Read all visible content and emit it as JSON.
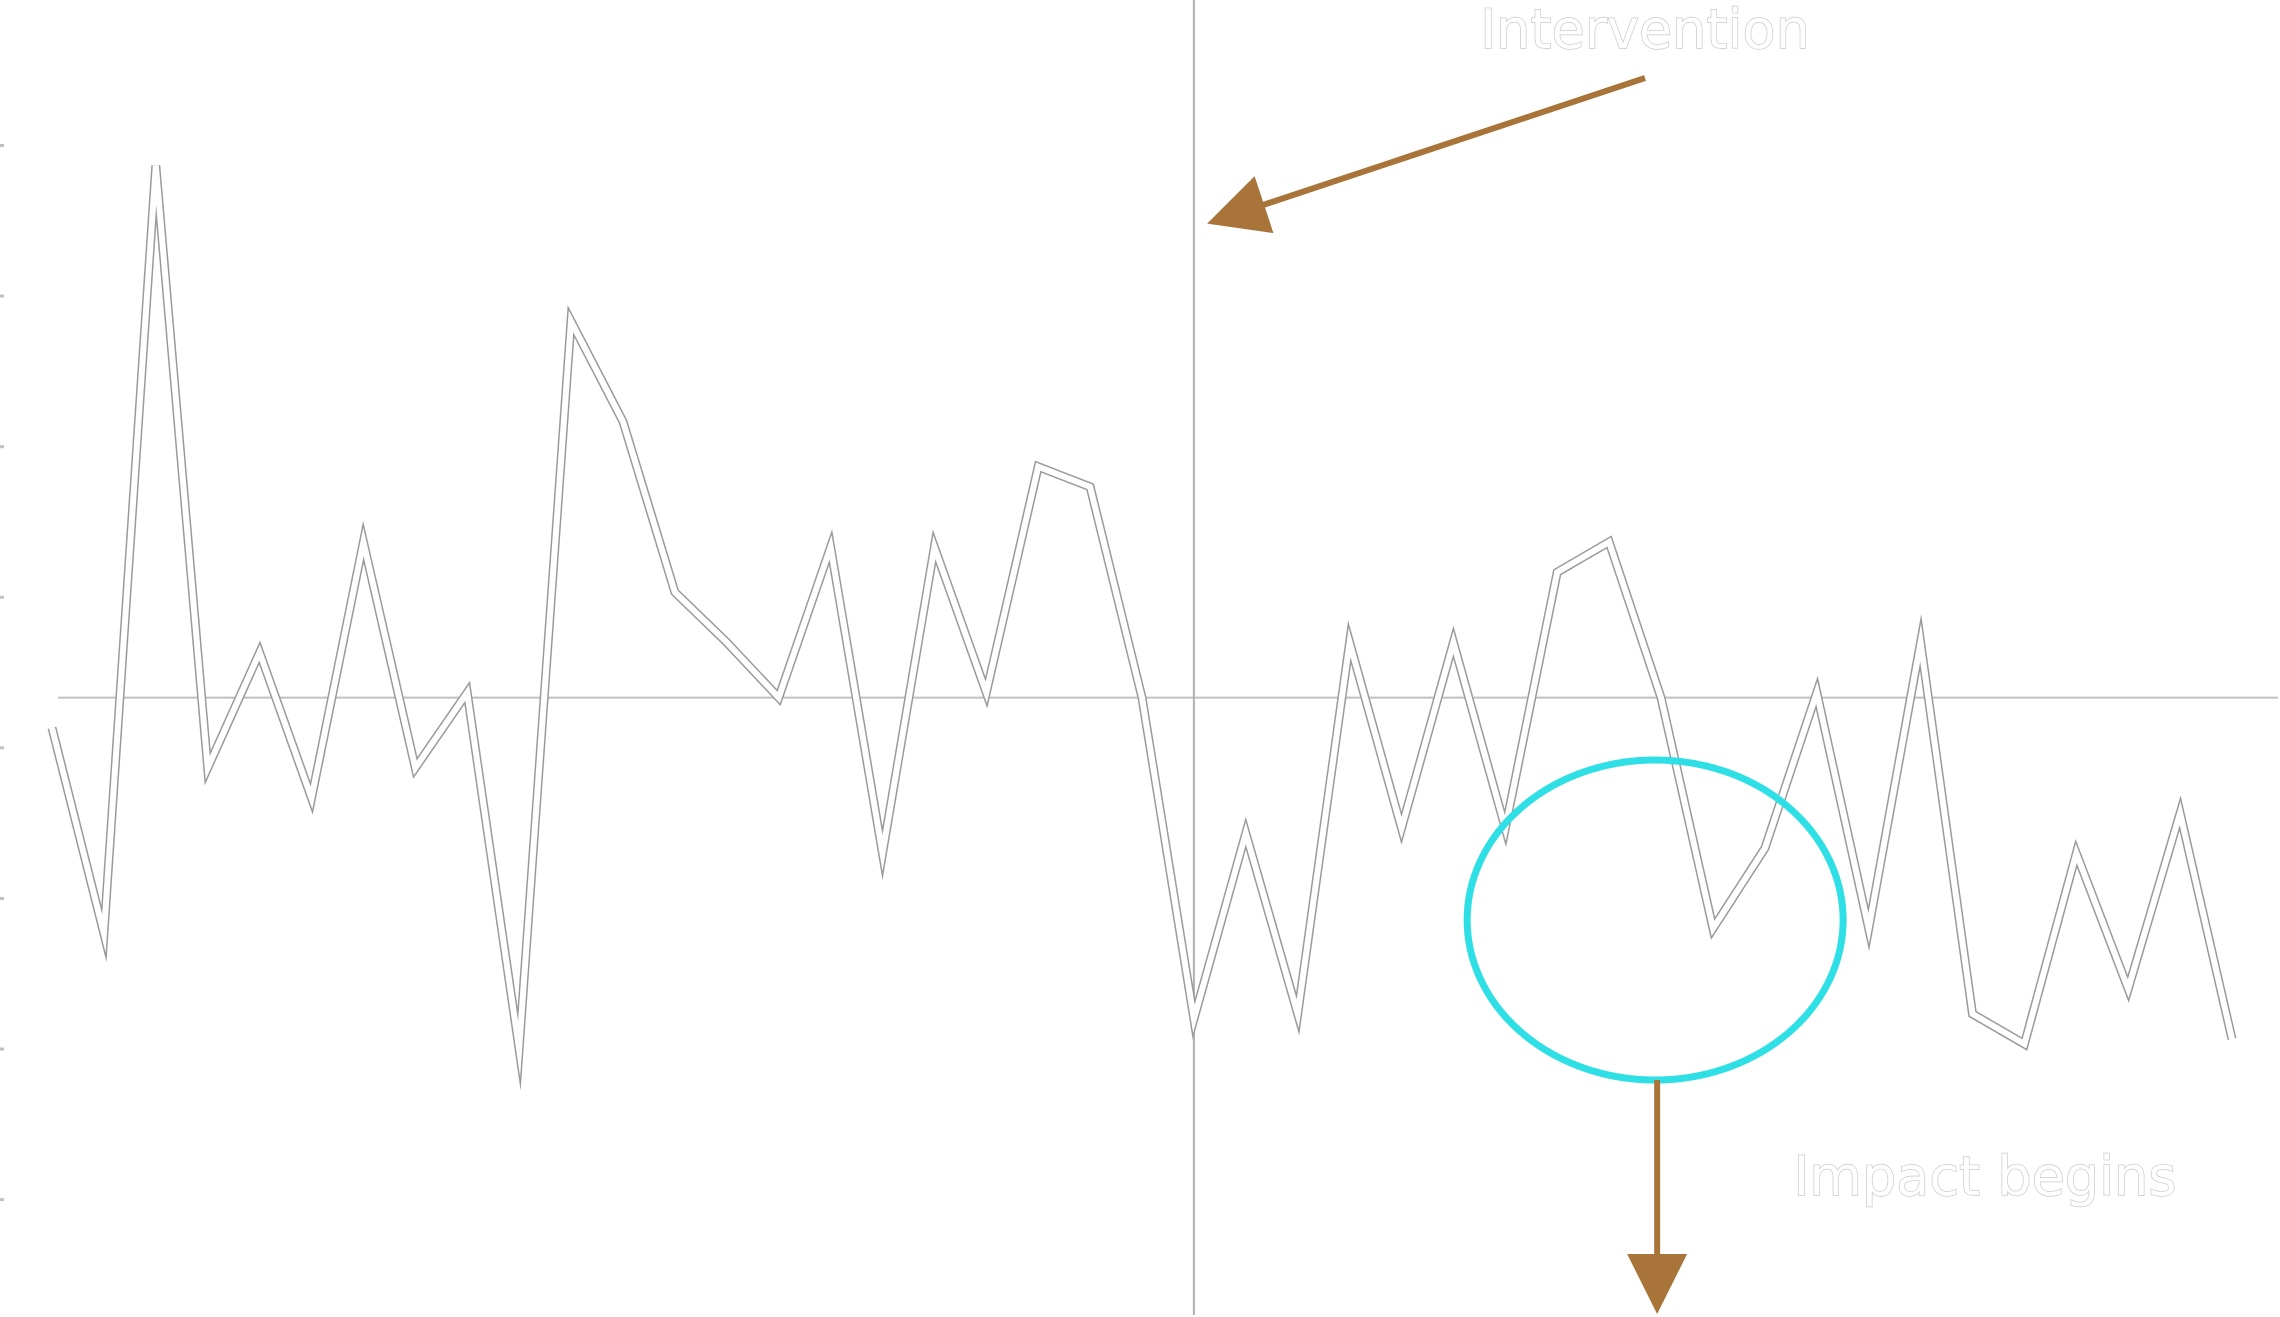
{
  "chart_data": {
    "type": "line",
    "title": "",
    "xlabel": "",
    "ylabel": "",
    "grid": false,
    "legend": "none",
    "x": [
      0,
      1,
      2,
      3,
      4,
      5,
      6,
      7,
      8,
      9,
      10,
      11,
      12,
      13,
      14,
      15,
      16,
      17,
      18,
      19,
      20,
      21,
      22,
      23,
      24,
      25,
      26,
      27,
      28,
      29,
      30,
      31,
      32,
      33,
      34,
      35,
      36,
      37,
      38,
      39,
      40,
      41,
      42
    ],
    "series": [
      {
        "values": [
          -0.6,
          -4.7,
          10.6,
          -1.4,
          0.9,
          -2.0,
          3.1,
          -1.4,
          0.1,
          -7.0,
          7.5,
          5.5,
          2.1,
          1.1,
          0.0,
          3.0,
          -3.1,
          3.0,
          0.1,
          4.6,
          4.2,
          0.0,
          -6.4,
          -2.7,
          -6.3,
          1.1,
          -2.6,
          1.1,
          -2.6,
          2.5,
          3.1,
          0.0,
          -4.6,
          -3.0,
          0.1,
          -4.6,
          1.1,
          -6.3,
          -6.9,
          -3.1,
          -5.8,
          -2.3,
          -6.8
        ]
      }
    ],
    "xlim": [
      0,
      42
    ],
    "ylim": [
      -12,
      13.5
    ],
    "reference_line": 0,
    "intervention_index": 22,
    "impact_index": 30,
    "colors": {
      "line_outline": "#9a9a9a",
      "line_fill": "#ffffff",
      "axis": "#c0c0c0",
      "arrow": "#a8743a",
      "circle": "#2ee0e6",
      "text_stroke": "#c8c8c8"
    },
    "annotations": {
      "intervention": "Intervention",
      "impact": "Impact begins"
    }
  }
}
